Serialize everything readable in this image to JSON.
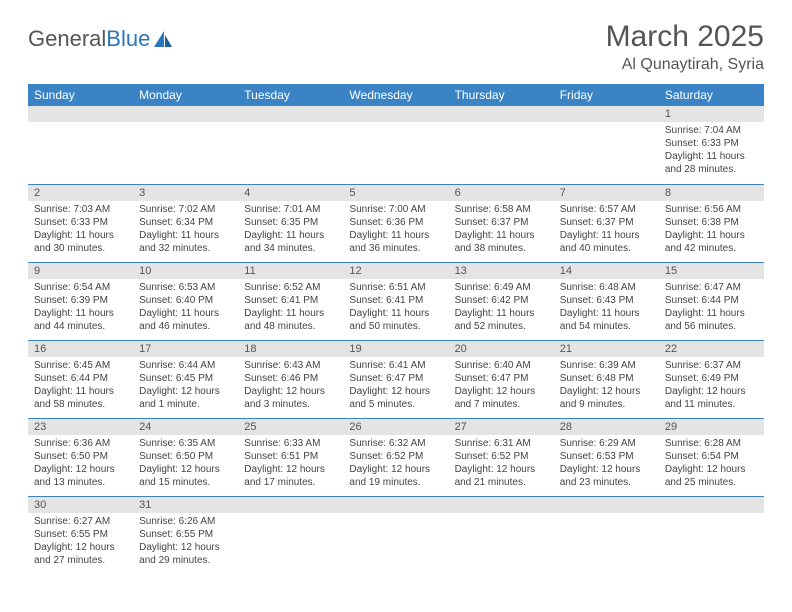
{
  "brand": {
    "part1": "General",
    "part2": "Blue"
  },
  "title": "March 2025",
  "location": "Al Qunaytirah, Syria",
  "colors": {
    "header_bg": "#3a84c6",
    "header_fg": "#ffffff",
    "daynum_bg": "#e4e4e4",
    "rule": "#3a84c6",
    "text": "#444444",
    "title": "#555555"
  },
  "day_headers": [
    "Sunday",
    "Monday",
    "Tuesday",
    "Wednesday",
    "Thursday",
    "Friday",
    "Saturday"
  ],
  "weeks": [
    [
      {
        "n": "",
        "sr": "",
        "ss": "",
        "dl": ""
      },
      {
        "n": "",
        "sr": "",
        "ss": "",
        "dl": ""
      },
      {
        "n": "",
        "sr": "",
        "ss": "",
        "dl": ""
      },
      {
        "n": "",
        "sr": "",
        "ss": "",
        "dl": ""
      },
      {
        "n": "",
        "sr": "",
        "ss": "",
        "dl": ""
      },
      {
        "n": "",
        "sr": "",
        "ss": "",
        "dl": ""
      },
      {
        "n": "1",
        "sr": "Sunrise: 7:04 AM",
        "ss": "Sunset: 6:33 PM",
        "dl": "Daylight: 11 hours and 28 minutes."
      }
    ],
    [
      {
        "n": "2",
        "sr": "Sunrise: 7:03 AM",
        "ss": "Sunset: 6:33 PM",
        "dl": "Daylight: 11 hours and 30 minutes."
      },
      {
        "n": "3",
        "sr": "Sunrise: 7:02 AM",
        "ss": "Sunset: 6:34 PM",
        "dl": "Daylight: 11 hours and 32 minutes."
      },
      {
        "n": "4",
        "sr": "Sunrise: 7:01 AM",
        "ss": "Sunset: 6:35 PM",
        "dl": "Daylight: 11 hours and 34 minutes."
      },
      {
        "n": "5",
        "sr": "Sunrise: 7:00 AM",
        "ss": "Sunset: 6:36 PM",
        "dl": "Daylight: 11 hours and 36 minutes."
      },
      {
        "n": "6",
        "sr": "Sunrise: 6:58 AM",
        "ss": "Sunset: 6:37 PM",
        "dl": "Daylight: 11 hours and 38 minutes."
      },
      {
        "n": "7",
        "sr": "Sunrise: 6:57 AM",
        "ss": "Sunset: 6:37 PM",
        "dl": "Daylight: 11 hours and 40 minutes."
      },
      {
        "n": "8",
        "sr": "Sunrise: 6:56 AM",
        "ss": "Sunset: 6:38 PM",
        "dl": "Daylight: 11 hours and 42 minutes."
      }
    ],
    [
      {
        "n": "9",
        "sr": "Sunrise: 6:54 AM",
        "ss": "Sunset: 6:39 PM",
        "dl": "Daylight: 11 hours and 44 minutes."
      },
      {
        "n": "10",
        "sr": "Sunrise: 6:53 AM",
        "ss": "Sunset: 6:40 PM",
        "dl": "Daylight: 11 hours and 46 minutes."
      },
      {
        "n": "11",
        "sr": "Sunrise: 6:52 AM",
        "ss": "Sunset: 6:41 PM",
        "dl": "Daylight: 11 hours and 48 minutes."
      },
      {
        "n": "12",
        "sr": "Sunrise: 6:51 AM",
        "ss": "Sunset: 6:41 PM",
        "dl": "Daylight: 11 hours and 50 minutes."
      },
      {
        "n": "13",
        "sr": "Sunrise: 6:49 AM",
        "ss": "Sunset: 6:42 PM",
        "dl": "Daylight: 11 hours and 52 minutes."
      },
      {
        "n": "14",
        "sr": "Sunrise: 6:48 AM",
        "ss": "Sunset: 6:43 PM",
        "dl": "Daylight: 11 hours and 54 minutes."
      },
      {
        "n": "15",
        "sr": "Sunrise: 6:47 AM",
        "ss": "Sunset: 6:44 PM",
        "dl": "Daylight: 11 hours and 56 minutes."
      }
    ],
    [
      {
        "n": "16",
        "sr": "Sunrise: 6:45 AM",
        "ss": "Sunset: 6:44 PM",
        "dl": "Daylight: 11 hours and 58 minutes."
      },
      {
        "n": "17",
        "sr": "Sunrise: 6:44 AM",
        "ss": "Sunset: 6:45 PM",
        "dl": "Daylight: 12 hours and 1 minute."
      },
      {
        "n": "18",
        "sr": "Sunrise: 6:43 AM",
        "ss": "Sunset: 6:46 PM",
        "dl": "Daylight: 12 hours and 3 minutes."
      },
      {
        "n": "19",
        "sr": "Sunrise: 6:41 AM",
        "ss": "Sunset: 6:47 PM",
        "dl": "Daylight: 12 hours and 5 minutes."
      },
      {
        "n": "20",
        "sr": "Sunrise: 6:40 AM",
        "ss": "Sunset: 6:47 PM",
        "dl": "Daylight: 12 hours and 7 minutes."
      },
      {
        "n": "21",
        "sr": "Sunrise: 6:39 AM",
        "ss": "Sunset: 6:48 PM",
        "dl": "Daylight: 12 hours and 9 minutes."
      },
      {
        "n": "22",
        "sr": "Sunrise: 6:37 AM",
        "ss": "Sunset: 6:49 PM",
        "dl": "Daylight: 12 hours and 11 minutes."
      }
    ],
    [
      {
        "n": "23",
        "sr": "Sunrise: 6:36 AM",
        "ss": "Sunset: 6:50 PM",
        "dl": "Daylight: 12 hours and 13 minutes."
      },
      {
        "n": "24",
        "sr": "Sunrise: 6:35 AM",
        "ss": "Sunset: 6:50 PM",
        "dl": "Daylight: 12 hours and 15 minutes."
      },
      {
        "n": "25",
        "sr": "Sunrise: 6:33 AM",
        "ss": "Sunset: 6:51 PM",
        "dl": "Daylight: 12 hours and 17 minutes."
      },
      {
        "n": "26",
        "sr": "Sunrise: 6:32 AM",
        "ss": "Sunset: 6:52 PM",
        "dl": "Daylight: 12 hours and 19 minutes."
      },
      {
        "n": "27",
        "sr": "Sunrise: 6:31 AM",
        "ss": "Sunset: 6:52 PM",
        "dl": "Daylight: 12 hours and 21 minutes."
      },
      {
        "n": "28",
        "sr": "Sunrise: 6:29 AM",
        "ss": "Sunset: 6:53 PM",
        "dl": "Daylight: 12 hours and 23 minutes."
      },
      {
        "n": "29",
        "sr": "Sunrise: 6:28 AM",
        "ss": "Sunset: 6:54 PM",
        "dl": "Daylight: 12 hours and 25 minutes."
      }
    ],
    [
      {
        "n": "30",
        "sr": "Sunrise: 6:27 AM",
        "ss": "Sunset: 6:55 PM",
        "dl": "Daylight: 12 hours and 27 minutes."
      },
      {
        "n": "31",
        "sr": "Sunrise: 6:26 AM",
        "ss": "Sunset: 6:55 PM",
        "dl": "Daylight: 12 hours and 29 minutes."
      },
      {
        "n": "",
        "sr": "",
        "ss": "",
        "dl": ""
      },
      {
        "n": "",
        "sr": "",
        "ss": "",
        "dl": ""
      },
      {
        "n": "",
        "sr": "",
        "ss": "",
        "dl": ""
      },
      {
        "n": "",
        "sr": "",
        "ss": "",
        "dl": ""
      },
      {
        "n": "",
        "sr": "",
        "ss": "",
        "dl": ""
      }
    ]
  ]
}
